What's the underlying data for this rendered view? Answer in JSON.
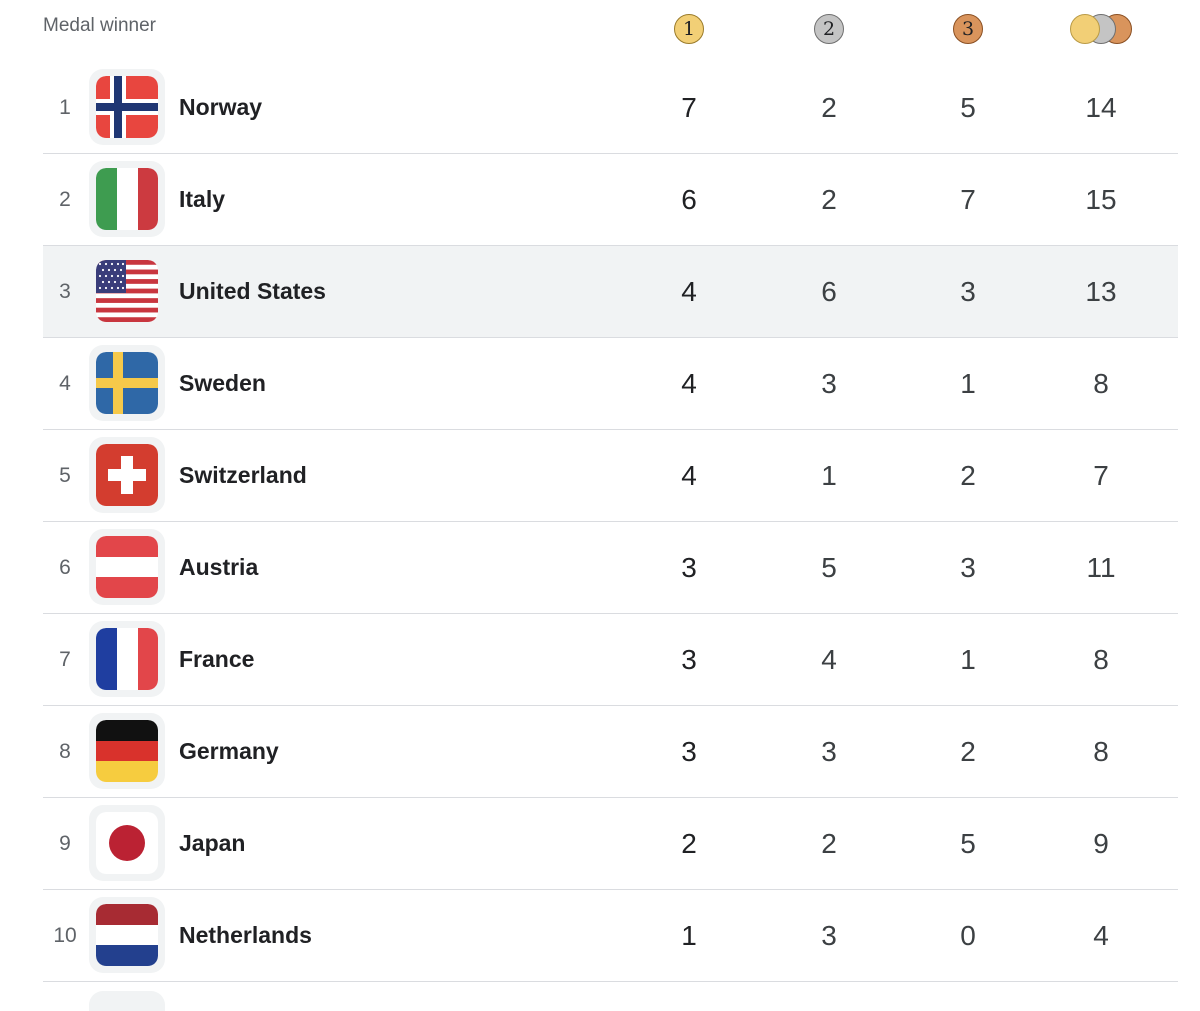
{
  "header": {
    "title": "Medal winner",
    "medals": [
      {
        "name": "gold",
        "label": "1",
        "color": "#f2cf76"
      },
      {
        "name": "silver",
        "label": "2",
        "color": "#c4c4c4"
      },
      {
        "name": "bronze",
        "label": "3",
        "color": "#d9945c"
      }
    ],
    "total_icon": "total-medals-icon"
  },
  "rows": [
    {
      "rank": "1",
      "country": "Norway",
      "gold": "7",
      "silver": "2",
      "bronze": "5",
      "total": "14",
      "flag": "norway-flag"
    },
    {
      "rank": "2",
      "country": "Italy",
      "gold": "6",
      "silver": "2",
      "bronze": "7",
      "total": "15",
      "flag": "italy-flag"
    },
    {
      "rank": "3",
      "country": "United States",
      "gold": "4",
      "silver": "6",
      "bronze": "3",
      "total": "13",
      "flag": "usa-flag",
      "highlighted": true
    },
    {
      "rank": "4",
      "country": "Sweden",
      "gold": "4",
      "silver": "3",
      "bronze": "1",
      "total": "8",
      "flag": "sweden-flag"
    },
    {
      "rank": "5",
      "country": "Switzerland",
      "gold": "4",
      "silver": "1",
      "bronze": "2",
      "total": "7",
      "flag": "switzerland-flag"
    },
    {
      "rank": "6",
      "country": "Austria",
      "gold": "3",
      "silver": "5",
      "bronze": "3",
      "total": "11",
      "flag": "austria-flag"
    },
    {
      "rank": "7",
      "country": "France",
      "gold": "3",
      "silver": "4",
      "bronze": "1",
      "total": "8",
      "flag": "france-flag"
    },
    {
      "rank": "8",
      "country": "Germany",
      "gold": "3",
      "silver": "3",
      "bronze": "2",
      "total": "8",
      "flag": "germany-flag"
    },
    {
      "rank": "9",
      "country": "Japan",
      "gold": "2",
      "silver": "2",
      "bronze": "5",
      "total": "9",
      "flag": "japan-flag"
    },
    {
      "rank": "10",
      "country": "Netherlands",
      "gold": "1",
      "silver": "3",
      "bronze": "0",
      "total": "4",
      "flag": "netherlands-flag"
    }
  ],
  "colors": {
    "highlight_row": "#f1f3f4",
    "divider": "#dadce0",
    "gold": "#f2cf76",
    "silver": "#c4c4c4",
    "bronze": "#d9945c"
  }
}
